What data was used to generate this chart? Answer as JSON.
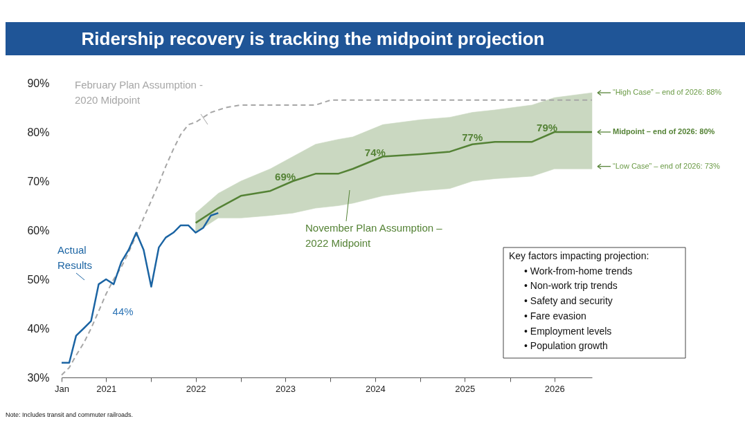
{
  "chart_data": {
    "type": "line",
    "title": "Ridership recovery is tracking the midpoint projection",
    "xlim": [
      "2021-01",
      "2026-12"
    ],
    "xticks": [
      {
        "value": "2021-01",
        "label": "Jan"
      },
      {
        "value": "2021-07",
        "label": "2021"
      },
      {
        "value": "2022-01",
        "label": null
      },
      {
        "value": "2022-07",
        "label": "2022"
      },
      {
        "value": "2023-01",
        "label": null
      },
      {
        "value": "2023-07",
        "label": "2023"
      },
      {
        "value": "2024-01",
        "label": null
      },
      {
        "value": "2024-07",
        "label": "2024"
      },
      {
        "value": "2025-01",
        "label": null
      },
      {
        "value": "2025-07",
        "label": "2025"
      },
      {
        "value": "2026-01",
        "label": null
      },
      {
        "value": "2026-07",
        "label": "2026"
      }
    ],
    "ylim": [
      30,
      90
    ],
    "yticks": [
      {
        "value": 30,
        "label": "30%"
      },
      {
        "value": 40,
        "label": "40%"
      },
      {
        "value": 50,
        "label": "50%"
      },
      {
        "value": 60,
        "label": "60%"
      },
      {
        "value": 70,
        "label": "70%"
      },
      {
        "value": 80,
        "label": "80%"
      },
      {
        "value": 90,
        "label": "90%"
      }
    ],
    "marker": "none",
    "series": [
      {
        "name": "February Plan Assumption -\n2020 Midpoint",
        "color": "#a6a6a6",
        "line_style": "dashed",
        "x": [
          "2021-01",
          "2021-02",
          "2021-03",
          "2021-04",
          "2021-05",
          "2021-06",
          "2021-07",
          "2021-08",
          "2021-09",
          "2021-10",
          "2021-11",
          "2021-12",
          "2022-01",
          "2022-02",
          "2022-03",
          "2022-04",
          "2022-05",
          "2022-06",
          "2022-07",
          "2022-08",
          "2022-09",
          "2022-11",
          "2023-01",
          "2023-11",
          "2024-01",
          "2026-12"
        ],
        "values": [
          30.5,
          32,
          34.5,
          37,
          40,
          43.5,
          47,
          50,
          52.5,
          55.5,
          59,
          62.5,
          66,
          69.5,
          73,
          76.5,
          79.5,
          81.5,
          82,
          83,
          84,
          85,
          85.5,
          85.5,
          86.5,
          86.5
        ]
      },
      {
        "name": "November Plan Assumption –\n2022 Midpoint",
        "color": "#548235",
        "line_style": "solid",
        "x": [
          "2022-07",
          "2022-10",
          "2023-01",
          "2023-05",
          "2023-08",
          "2023-11",
          "2024-02",
          "2024-04",
          "2024-08",
          "2025-01",
          "2025-05",
          "2025-08",
          "2025-11",
          "2026-04",
          "2026-07",
          "2026-12"
        ],
        "values": [
          61.5,
          64.5,
          67,
          68,
          70,
          71.5,
          71.5,
          72.5,
          75,
          75.5,
          76,
          77.5,
          78,
          78,
          80,
          80
        ],
        "lower": [
          59.5,
          62.5,
          62.5,
          63,
          63.5,
          64.5,
          65,
          65.5,
          67,
          68,
          68.5,
          70,
          70.5,
          71,
          72.5,
          72.5
        ],
        "upper": [
          63.5,
          67.5,
          70,
          72.5,
          75,
          77.5,
          78.5,
          79,
          81.5,
          82.5,
          83,
          84,
          84.5,
          85.5,
          87,
          88
        ]
      },
      {
        "name": "Actual\nResults",
        "color": "#1b64a3",
        "line_style": "solid",
        "x": [
          "2021-01",
          "2021-02",
          "2021-03",
          "2021-04",
          "2021-05",
          "2021-06",
          "2021-07",
          "2021-08",
          "2021-09",
          "2021-10",
          "2021-11",
          "2021-12",
          "2022-01",
          "2022-02",
          "2022-03",
          "2022-04",
          "2022-05",
          "2022-06",
          "2022-07",
          "2022-08",
          "2022-09",
          "2022-10"
        ],
        "values": [
          33,
          33,
          38.5,
          40,
          41.5,
          49,
          50,
          49,
          53.5,
          56,
          59.5,
          56,
          48.5,
          56.5,
          58.5,
          59.5,
          61,
          61,
          59.5,
          60.5,
          63,
          63.5
        ]
      }
    ],
    "annotations": [
      {
        "text": "44%",
        "x": "2021-06",
        "y": 44
      },
      {
        "text": "69%",
        "x": "2023-07",
        "y": 69
      },
      {
        "text": "74%",
        "x": "2024-07",
        "y": 74
      },
      {
        "text": "77%",
        "x": "2025-08",
        "y": 77
      },
      {
        "text": "79%",
        "x": "2026-06",
        "y": 79
      },
      {
        "text": "“High Case” – end of 2026: 88%",
        "x": "2026-12",
        "y": 88
      },
      {
        "text": "Midpoint – end of 2026: 80%",
        "x": "2026-12",
        "y": 80
      },
      {
        "text": "“Low Case” – end of 2026: 73%",
        "x": "2026-12",
        "y": 73
      },
      "Key factors impacting projection:\n• Work-from-home trends\n• Non-work trip trends\n• Safety and security\n• Fare evasion\n• Employment levels\n• Population growth",
      "Note: Includes transit and commuter railroads."
    ]
  }
}
